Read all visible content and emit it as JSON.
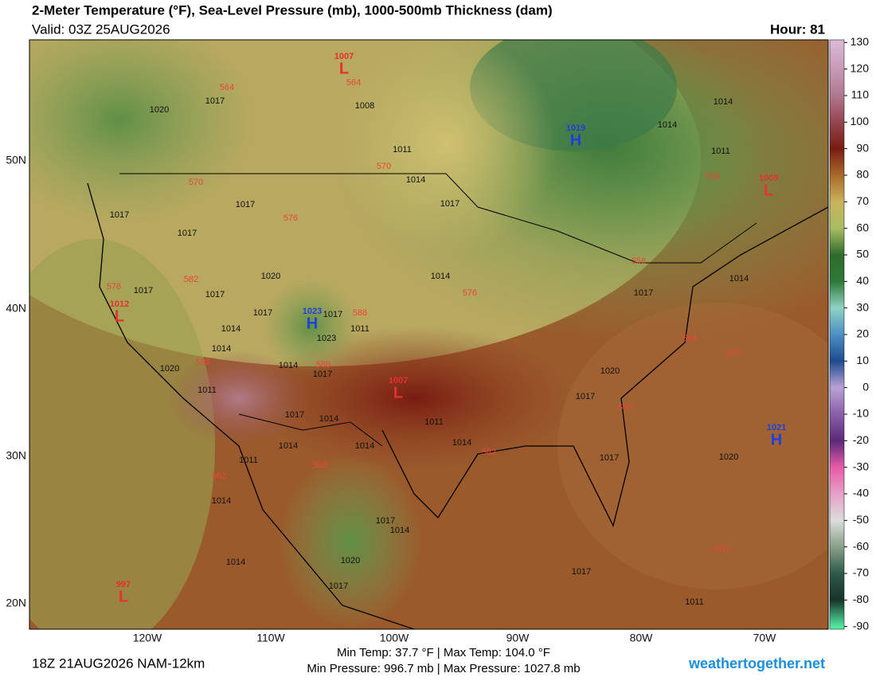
{
  "header": {
    "title": "2-Meter Temperature (°F), Sea-Level Pressure (mb), 1000-500mb Thickness (dam)",
    "valid": "Valid: 03Z 25AUG2026",
    "hour": "Hour: 81"
  },
  "colorbar": {
    "range": [
      -91,
      131
    ],
    "ticks": [
      130,
      120,
      110,
      100,
      90,
      80,
      70,
      60,
      50,
      40,
      30,
      20,
      10,
      0,
      -10,
      -20,
      -30,
      -40,
      -50,
      -60,
      -70,
      -80,
      -90
    ],
    "colors": [
      "#d9b8d6",
      "#c89ab5",
      "#b0788f",
      "#95454f",
      "#7a1c12",
      "#a86a2c",
      "#c9b35a",
      "#a9bd63",
      "#2f6b2c",
      "#2e7a3a",
      "#8fd3c4",
      "#4c8fc4",
      "#1f4c8f",
      "#b9a2d6",
      "#8a5fa8",
      "#5a2a78",
      "#e85aa8",
      "#e8a0c8",
      "#dcdcdc",
      "#8aa08a",
      "#2e5a4a",
      "#17332a",
      "#52e8a0"
    ]
  },
  "lat_labels": [
    "50N",
    "40N",
    "30N",
    "20N"
  ],
  "lon_labels": [
    "120W",
    "110W",
    "100W",
    "90W",
    "80W",
    "70W"
  ],
  "pressure_centers": [
    {
      "letter": "L",
      "value": "1007"
    },
    {
      "letter": "H",
      "value": "1019"
    },
    {
      "letter": "L",
      "value": "1009"
    },
    {
      "letter": "L",
      "value": "1012"
    },
    {
      "letter": "H",
      "value": "1023"
    },
    {
      "letter": "L",
      "value": "1007"
    },
    {
      "letter": "H",
      "value": "1021"
    },
    {
      "letter": "L",
      "value": "997"
    }
  ],
  "contour_labels": {
    "pressure": [
      "1020",
      "1017",
      "1008",
      "1011",
      "1014",
      "1017",
      "1014",
      "1014",
      "1011",
      "1017",
      "1017",
      "1017",
      "1020",
      "1017",
      "1017",
      "1017",
      "1014",
      "1017",
      "1011",
      "1023",
      "1014",
      "1014",
      "1017",
      "1020",
      "1011",
      "1017",
      "1014",
      "1011",
      "1014",
      "1014",
      "1014",
      "1014",
      "1017",
      "1011",
      "1014",
      "1017",
      "1014",
      "1014",
      "1020",
      "1017",
      "1017",
      "1011",
      "1020",
      "1017",
      "1014",
      "1020",
      "1017"
    ],
    "thickness": [
      "564",
      "564",
      "570",
      "570",
      "576",
      "582",
      "576",
      "588",
      "588",
      "588",
      "576",
      "558",
      "558",
      "564",
      "570",
      "576",
      "582",
      "588",
      "582",
      "576"
    ]
  },
  "footer": {
    "run": "18Z 21AUG2026 NAM-12km",
    "temps": "Min Temp: 37.7 °F | Max Temp: 104.0 °F",
    "pressures": "Min Pressure: 996.7 mb | Max Pressure: 1027.8 mb",
    "site": "weathertogether.net"
  }
}
